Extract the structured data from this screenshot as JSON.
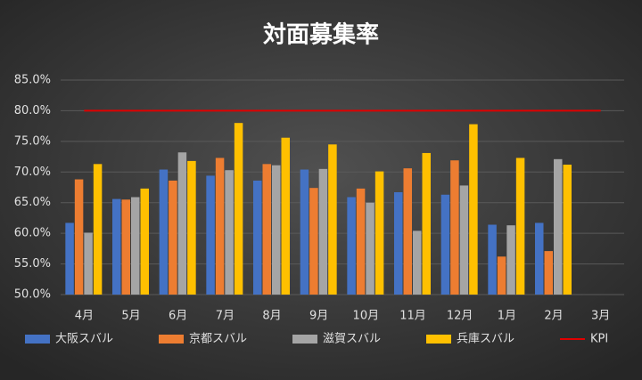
{
  "chart_data": {
    "type": "bar",
    "title": "対面募集率",
    "categories": [
      "4月",
      "5月",
      "6月",
      "7月",
      "8月",
      "9月",
      "10月",
      "11月",
      "12月",
      "1月",
      "2月",
      "3月"
    ],
    "series": [
      {
        "name": "大阪スバル",
        "color": "#4472c4",
        "values": [
          61.7,
          65.6,
          70.4,
          69.4,
          68.6,
          70.4,
          65.9,
          66.7,
          66.3,
          61.4,
          61.7,
          null
        ]
      },
      {
        "name": "京都スバル",
        "color": "#ed7d31",
        "values": [
          68.8,
          65.5,
          68.6,
          72.3,
          71.3,
          67.4,
          67.3,
          70.6,
          71.9,
          56.2,
          57.1,
          null
        ]
      },
      {
        "name": "滋賀スバル",
        "color": "#a5a5a5",
        "values": [
          60.1,
          65.9,
          73.2,
          70.3,
          71.1,
          70.5,
          65.0,
          60.4,
          67.8,
          61.3,
          72.1,
          null
        ]
      },
      {
        "name": "兵庫スバル",
        "color": "#ffc000",
        "values": [
          71.3,
          67.3,
          71.8,
          78.0,
          75.6,
          74.5,
          70.1,
          73.1,
          77.8,
          72.3,
          71.2,
          null
        ]
      },
      {
        "name": "KPI",
        "color": "#e00000",
        "type": "line",
        "values": [
          80,
          80,
          80,
          80,
          80,
          80,
          80,
          80,
          80,
          80,
          80,
          80
        ]
      }
    ],
    "ylim": [
      50,
      85
    ],
    "yticks": [
      {
        "value": 50,
        "label": "50.0%"
      },
      {
        "value": 55,
        "label": "55.0%"
      },
      {
        "value": 60,
        "label": "60.0%"
      },
      {
        "value": 65,
        "label": "65.0%"
      },
      {
        "value": 70,
        "label": "70.0%"
      },
      {
        "value": 75,
        "label": "75.0%"
      },
      {
        "value": 80,
        "label": "80.0%"
      },
      {
        "value": 85,
        "label": "85.0%"
      }
    ],
    "grid": true,
    "legend": "bottom"
  }
}
